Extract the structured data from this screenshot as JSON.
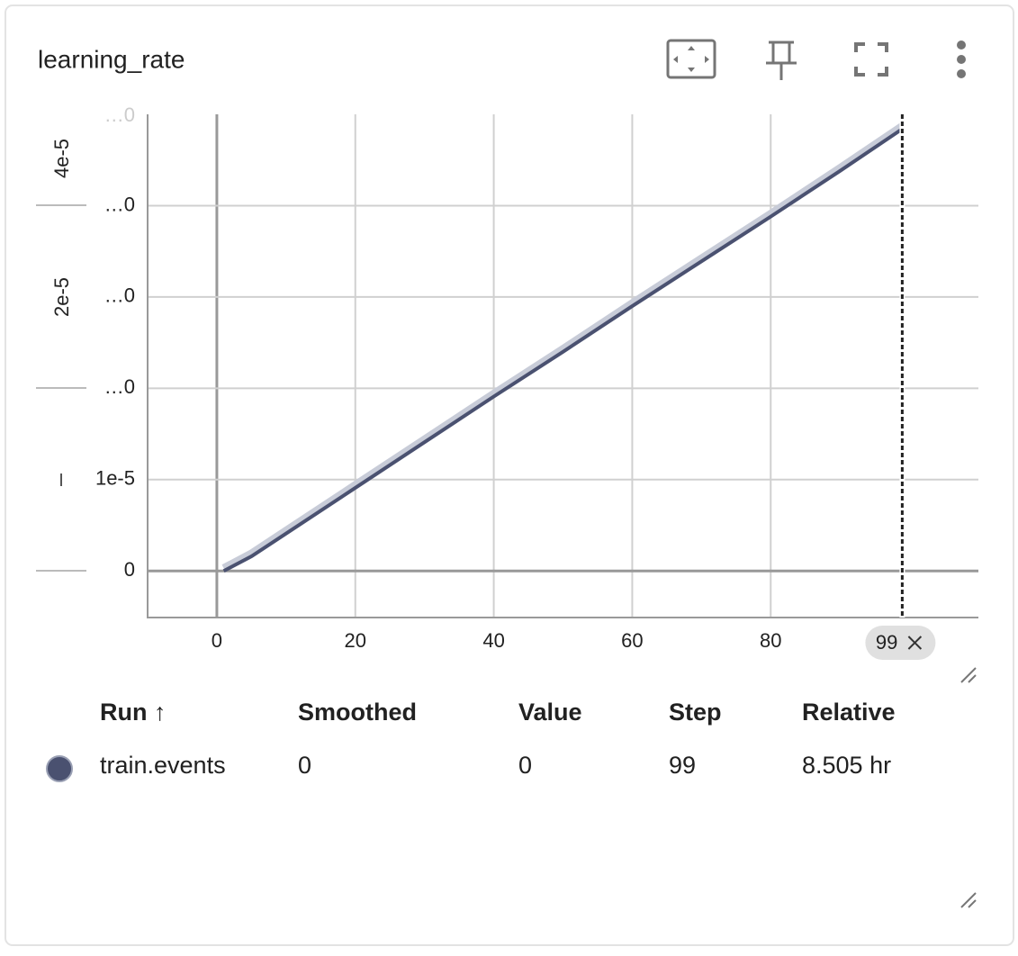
{
  "card": {
    "title": "learning_rate"
  },
  "chart_data": {
    "type": "line",
    "x": [
      1,
      5,
      10,
      20,
      30,
      40,
      50,
      60,
      70,
      80,
      90,
      99
    ],
    "series": [
      {
        "name": "train.events",
        "color": "#4a5170",
        "halo_color": "#c8ccd8",
        "values": [
          0,
          1.6e-06,
          4.1e-06,
          9.1e-06,
          1.41e-05,
          1.91e-05,
          2.4e-05,
          2.9e-05,
          3.39e-05,
          3.88e-05,
          4.38e-05,
          4.84e-05
        ]
      }
    ],
    "xlim": [
      -10,
      110
    ],
    "xticks": [
      0,
      20,
      40,
      60,
      80
    ],
    "ylim": [
      -5.1e-06,
      5e-05
    ],
    "yticks": [
      {
        "value": 0,
        "label": "0"
      },
      {
        "value": 1e-05,
        "label": "1e-5"
      },
      {
        "value": 2e-05,
        "label": "…0"
      },
      {
        "value": 3e-05,
        "label": "…0"
      },
      {
        "value": 4e-05,
        "label": "…0"
      },
      {
        "value": 5e-05,
        "label": "…0"
      }
    ],
    "rotated_labels": [
      "4e-5",
      "2e-5"
    ],
    "cursor": {
      "value": 99,
      "label": "99"
    },
    "grid": true
  },
  "table": {
    "header": [
      "Run ↑",
      "Smoothed",
      "Value",
      "Step",
      "Relative"
    ],
    "rows": [
      [
        "train.events",
        0,
        0,
        99,
        "8.505 hr"
      ]
    ]
  }
}
